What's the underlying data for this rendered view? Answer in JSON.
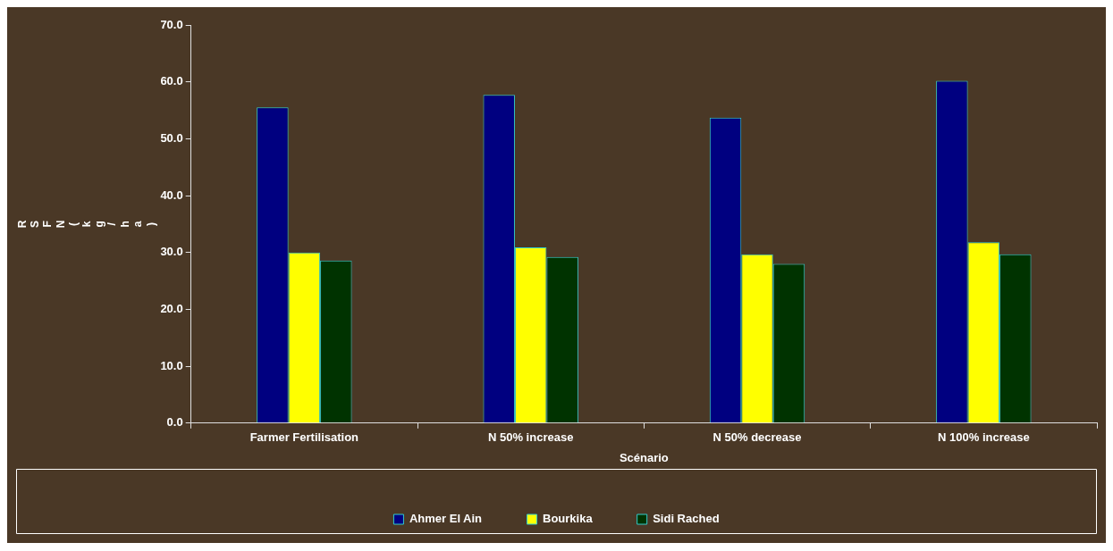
{
  "chart_data": {
    "type": "bar",
    "xlabel": "Scénario",
    "ylabel": "RSFN (kg/ha)",
    "categories": [
      "Farmer Fertilisation",
      "N 50% increase",
      "N 50% decrease",
      "N 100% increase"
    ],
    "series": [
      {
        "name": "Ahmer El Ain",
        "color": "#000080",
        "values": [
          55.5,
          57.7,
          53.7,
          60.2
        ]
      },
      {
        "name": "Bourkika",
        "color": "#ffff00",
        "values": [
          30.0,
          30.9,
          29.7,
          31.8
        ]
      },
      {
        "name": "Sidi Rached",
        "color": "#003300",
        "values": [
          28.6,
          29.2,
          28.0,
          29.7
        ]
      }
    ],
    "ylim": [
      0,
      70
    ],
    "yticks": [
      {
        "value": 0,
        "label": "0.0"
      },
      {
        "value": 10,
        "label": "10.0"
      },
      {
        "value": 20,
        "label": "20.0"
      },
      {
        "value": 30,
        "label": "30.0"
      },
      {
        "value": 40,
        "label": "40.0"
      },
      {
        "value": 50,
        "label": "50.0"
      },
      {
        "value": 60,
        "label": "60.0"
      },
      {
        "value": 70,
        "label": "70.0"
      }
    ],
    "grid": false,
    "legend": "bottom"
  }
}
